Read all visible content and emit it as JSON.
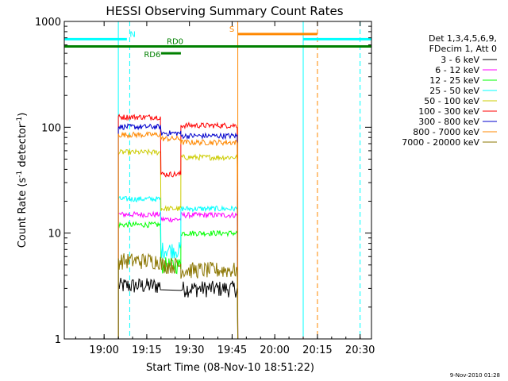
{
  "chart_data": {
    "type": "line",
    "title": "HESSI Observing Summary Count Rates",
    "xlabel": "Start Time (08-Nov-10 18:51:22)",
    "ylabel_main": "Count Rate (s",
    "ylabel_sup1": "-1",
    "ylabel_mid": " detector",
    "ylabel_sup2": "-1",
    "ylabel_end": ")",
    "yscale": "log",
    "ylim": [
      1,
      1000
    ],
    "xlim_minutes": [
      -14,
      94
    ],
    "x_ticks": [
      {
        "m": 0,
        "label": "19:00"
      },
      {
        "m": 15,
        "label": "19:15"
      },
      {
        "m": 30,
        "label": "19:30"
      },
      {
        "m": 45,
        "label": "19:45"
      },
      {
        "m": 60,
        "label": "20:00"
      },
      {
        "m": 75,
        "label": "20:15"
      },
      {
        "m": 90,
        "label": "20:30"
      }
    ],
    "y_ticks": [
      {
        "v": 1,
        "label": "1"
      },
      {
        "v": 10,
        "label": "10"
      },
      {
        "v": 100,
        "label": "100"
      },
      {
        "v": 1000,
        "label": "1000"
      }
    ],
    "legend_header": [
      "Det 1,3,4,5,6,9,",
      "FDecim 1, Att 0"
    ],
    "series": [
      {
        "name": "3 - 6 keV",
        "color": "#000000",
        "segs": [
          [
            5,
            20,
            3.2
          ],
          [
            20,
            27,
            null
          ],
          [
            27,
            47,
            3.0
          ]
        ]
      },
      {
        "name": "6 - 12 keV",
        "color": "#ff00ff",
        "segs": [
          [
            5,
            20,
            15.0
          ],
          [
            20,
            27,
            13.5
          ],
          [
            27,
            47,
            14.8
          ]
        ]
      },
      {
        "name": "12 - 25 keV",
        "color": "#00ff00",
        "segs": [
          [
            5,
            20,
            12.0
          ],
          [
            20,
            27,
            5.0
          ],
          [
            27,
            47,
            10.0
          ]
        ]
      },
      {
        "name": "25 - 50 keV",
        "color": "#00ffff",
        "segs": [
          [
            5,
            20,
            21.0
          ],
          [
            20,
            27,
            7.0
          ],
          [
            27,
            47,
            17.0
          ]
        ]
      },
      {
        "name": "50 - 100 keV",
        "color": "#cccc00",
        "segs": [
          [
            5,
            20,
            58.0
          ],
          [
            20,
            27,
            17.0
          ],
          [
            27,
            47,
            52.0
          ]
        ]
      },
      {
        "name": "100 - 300 keV",
        "color": "#ff0000",
        "segs": [
          [
            5,
            20,
            125.0
          ],
          [
            20,
            27,
            36.0
          ],
          [
            27,
            47,
            104.0
          ]
        ]
      },
      {
        "name": "300 - 800 keV",
        "color": "#0000cc",
        "segs": [
          [
            5,
            20,
            101.0
          ],
          [
            20,
            27,
            88.0
          ],
          [
            27,
            47,
            83.0
          ]
        ]
      },
      {
        "name": "800 - 7000 keV",
        "color": "#ff8800",
        "segs": [
          [
            5,
            20,
            85.0
          ],
          [
            20,
            27,
            78.0
          ],
          [
            27,
            47,
            72.0
          ]
        ]
      },
      {
        "name": "7000 - 20000 keV",
        "color": "#8b7500",
        "segs": [
          [
            5,
            20,
            5.5
          ],
          [
            20,
            27,
            5.0
          ],
          [
            27,
            47,
            4.5
          ]
        ]
      }
    ],
    "state_bars": [
      {
        "label": "N",
        "color": "#00ffff",
        "y": 680,
        "ranges": [
          [
            -14,
            8
          ],
          [
            70,
            94
          ]
        ],
        "label_at": 9
      },
      {
        "label": "S",
        "color": "#ff8800",
        "y": 760,
        "ranges": [
          [
            47,
            75
          ]
        ],
        "label_at": 44
      },
      {
        "label": "RD0",
        "color": "#008000",
        "y": 580,
        "ranges": [
          [
            -14,
            94
          ]
        ],
        "label_at": 22
      },
      {
        "label": "RD6",
        "color": "#008000",
        "y": 500,
        "ranges": [
          [
            20,
            27
          ]
        ],
        "label_at": 14
      }
    ],
    "vlines": [
      {
        "m": 5,
        "color": "#00ffff",
        "dashed": false
      },
      {
        "m": 9,
        "color": "#00ffff",
        "dashed": true
      },
      {
        "m": 47,
        "color": "#ff8800",
        "dashed": false
      },
      {
        "m": 70,
        "color": "#00ffff",
        "dashed": false
      },
      {
        "m": 75,
        "color": "#ff8800",
        "dashed": true
      },
      {
        "m": 90,
        "color": "#00ffff",
        "dashed": true
      },
      {
        "m": -14,
        "color": "#00ffff",
        "dashed": false
      }
    ],
    "timestamp": "9-Nov-2010 01:28"
  }
}
